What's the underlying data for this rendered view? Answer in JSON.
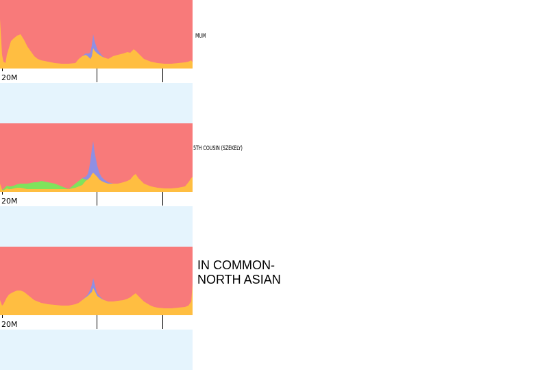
{
  "panels": [
    {
      "label": "MUM",
      "axis_label": "20M",
      "chart_data": {
        "type": "area",
        "stacked": true,
        "normalized": true,
        "ylim": [
          0,
          100
        ],
        "x": [
          0,
          3,
          5,
          8,
          10,
          13,
          16,
          20,
          25,
          30,
          35,
          40,
          45,
          50,
          55,
          60,
          70,
          80,
          90,
          100,
          110,
          115,
          120,
          125,
          128,
          130,
          132,
          134,
          136,
          138,
          140,
          142,
          145,
          148,
          152,
          158,
          165,
          172,
          180,
          186,
          190,
          195,
          198,
          202,
          206,
          210,
          215,
          220,
          225,
          230,
          240,
          250,
          260,
          270,
          275,
          279,
          281
        ],
        "series": [
          {
            "values": [
              72,
              20,
              10,
              8,
              20,
              30,
              40,
              44,
              48,
              50,
              42,
              32,
              25,
              18,
              14,
              12,
              10,
              8,
              7,
              7,
              8,
              14,
              18,
              20,
              18,
              16,
              14,
              18,
              30,
              26,
              24,
              22,
              20,
              18,
              16,
              14,
              18,
              20,
              22,
              24,
              23,
              28,
              26,
              22,
              18,
              14,
              12,
              10,
              9,
              8,
              7,
              7,
              8,
              9,
              10,
              12,
              9
            ],
            "color": "#ffbe41"
          },
          {
            "values": [
              0,
              0,
              0,
              0,
              0,
              0,
              0,
              0,
              0,
              0,
              0,
              0,
              0,
              0,
              0,
              0,
              0,
              0,
              0,
              0,
              0,
              0,
              0,
              0,
              0,
              0,
              0,
              0,
              0,
              0,
              0,
              0,
              0,
              0,
              0,
              0,
              0,
              0,
              0,
              0,
              0,
              0,
              0,
              0,
              0,
              0,
              0,
              0,
              0,
              0,
              0,
              0,
              0,
              0,
              0,
              0,
              0
            ],
            "color": "#7fe35c"
          },
          {
            "values": [
              0,
              0,
              0,
              0,
              0,
              0,
              0,
              0,
              0,
              0,
              0,
              0,
              0,
              0,
              0,
              0,
              0,
              0,
              0,
              0,
              0,
              0,
              0,
              2,
              4,
              6,
              10,
              16,
              20,
              14,
              10,
              6,
              4,
              2,
              0,
              0,
              0,
              0,
              0,
              0,
              0,
              0,
              0,
              0,
              0,
              0,
              0,
              0,
              0,
              0,
              0,
              0,
              0,
              0,
              0,
              0,
              0
            ],
            "color": "#8f8fe3"
          }
        ]
      }
    },
    {
      "label": "5TH COUSIN (SZEKELY)",
      "axis_label": "20M",
      "chart_data": {
        "type": "area",
        "stacked": true,
        "normalized": true,
        "ylim": [
          0,
          100
        ],
        "x": [
          0,
          3,
          5,
          8,
          10,
          13,
          16,
          20,
          25,
          30,
          35,
          40,
          45,
          50,
          55,
          60,
          70,
          80,
          90,
          100,
          110,
          115,
          120,
          125,
          128,
          130,
          132,
          134,
          136,
          138,
          140,
          142,
          145,
          148,
          152,
          158,
          165,
          172,
          180,
          186,
          190,
          195,
          198,
          202,
          206,
          210,
          215,
          220,
          225,
          230,
          240,
          250,
          260,
          270,
          275,
          279,
          281
        ],
        "series": [
          {
            "values": [
              12,
              3,
              2,
              4,
              5,
              4,
              4,
              5,
              6,
              6,
              5,
              4,
              4,
              4,
              4,
              4,
              4,
              4,
              4,
              4,
              6,
              8,
              10,
              16,
              18,
              20,
              22,
              26,
              28,
              26,
              24,
              22,
              18,
              16,
              14,
              12,
              12,
              12,
              14,
              16,
              18,
              24,
              26,
              20,
              16,
              12,
              10,
              8,
              7,
              6,
              5,
              5,
              6,
              8,
              14,
              20,
              22
            ],
            "color": "#ffbe41"
          },
          {
            "values": [
              0,
              0,
              2,
              3,
              4,
              4,
              4,
              4,
              5,
              6,
              7,
              8,
              9,
              10,
              10,
              12,
              10,
              8,
              4,
              0,
              6,
              8,
              10,
              2,
              0,
              0,
              0,
              0,
              0,
              0,
              0,
              0,
              0,
              0,
              0,
              0,
              0,
              0,
              0,
              0,
              0,
              0,
              0,
              0,
              0,
              0,
              0,
              0,
              0,
              0,
              0,
              0,
              0,
              0,
              0,
              0,
              0
            ],
            "color": "#7fe35c"
          },
          {
            "values": [
              0,
              0,
              0,
              0,
              0,
              0,
              0,
              0,
              0,
              0,
              0,
              0,
              0,
              0,
              0,
              0,
              0,
              0,
              0,
              0,
              0,
              0,
              0,
              4,
              8,
              14,
              24,
              36,
              46,
              32,
              24,
              16,
              10,
              6,
              4,
              2,
              0,
              0,
              0,
              0,
              0,
              0,
              0,
              0,
              0,
              0,
              0,
              0,
              0,
              0,
              0,
              0,
              0,
              0,
              0,
              0,
              0
            ],
            "color": "#8f8fe3"
          }
        ]
      }
    },
    {
      "label": "IN COMMON-\nNORTH ASIAN",
      "axis_label": "20M",
      "chart_data": {
        "type": "area",
        "stacked": true,
        "normalized": true,
        "ylim": [
          0,
          100
        ],
        "x": [
          0,
          3,
          5,
          8,
          10,
          13,
          16,
          20,
          25,
          30,
          35,
          40,
          45,
          50,
          55,
          60,
          70,
          80,
          90,
          100,
          110,
          115,
          120,
          125,
          128,
          130,
          132,
          134,
          136,
          138,
          140,
          142,
          145,
          148,
          152,
          158,
          165,
          172,
          180,
          186,
          190,
          195,
          198,
          202,
          206,
          210,
          215,
          220,
          225,
          230,
          240,
          250,
          260,
          270,
          275,
          279,
          281
        ],
        "series": [
          {
            "values": [
              22,
              14,
              16,
              22,
              26,
              30,
              32,
              34,
              36,
              36,
              34,
              30,
              26,
              22,
              20,
              18,
              16,
              15,
              14,
              14,
              16,
              18,
              22,
              26,
              28,
              30,
              32,
              34,
              40,
              36,
              32,
              28,
              26,
              24,
              22,
              20,
              20,
              21,
              22,
              24,
              26,
              30,
              32,
              28,
              24,
              20,
              17,
              14,
              12,
              11,
              10,
              10,
              11,
              12,
              14,
              20,
              46
            ],
            "color": "#ffbe41"
          },
          {
            "values": [
              0,
              0,
              0,
              0,
              0,
              0,
              0,
              0,
              0,
              0,
              0,
              0,
              0,
              0,
              0,
              0,
              0,
              0,
              0,
              0,
              0,
              0,
              0,
              0,
              0,
              0,
              0,
              0,
              0,
              0,
              0,
              0,
              0,
              0,
              0,
              0,
              0,
              0,
              0,
              0,
              0,
              0,
              0,
              0,
              0,
              0,
              0,
              0,
              0,
              0,
              0,
              0,
              0,
              0,
              0,
              0,
              0
            ],
            "color": "#7fe35c"
          },
          {
            "values": [
              0,
              0,
              0,
              0,
              0,
              0,
              0,
              0,
              0,
              0,
              0,
              0,
              0,
              0,
              0,
              0,
              0,
              0,
              0,
              0,
              0,
              0,
              0,
              1,
              2,
              4,
              6,
              10,
              14,
              10,
              6,
              4,
              2,
              1,
              0,
              0,
              0,
              0,
              0,
              0,
              0,
              0,
              0,
              0,
              0,
              0,
              0,
              0,
              0,
              0,
              0,
              0,
              0,
              0,
              0,
              0,
              0
            ],
            "color": "#8f8fe3"
          }
        ]
      }
    }
  ],
  "colors": {
    "remainder": "#f87a7a",
    "band": "#e5f4fd",
    "axis": "#000000"
  }
}
